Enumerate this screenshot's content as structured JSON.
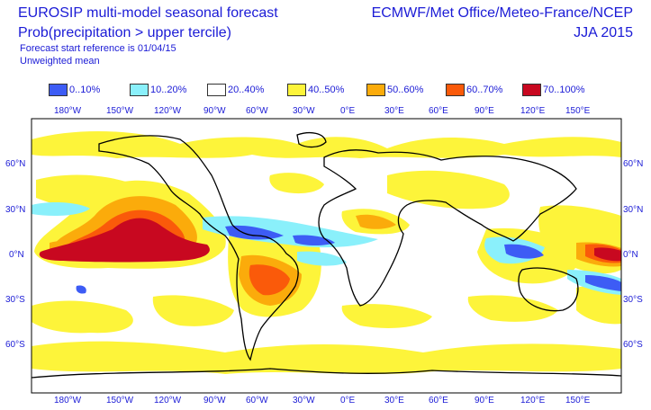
{
  "title": {
    "line1": "EUROSIP multi-model seasonal forecast",
    "line2": "Prob(precipitation > upper tercile)",
    "line3": "Forecast start reference is 01/04/15",
    "line4": "Unweighted mean",
    "right1": "ECMWF/Met Office/Meteo-France/NCEP",
    "right2": "JJA 2015"
  },
  "legend": [
    {
      "label": "0..10%",
      "color": "#3d5cf5"
    },
    {
      "label": "10..20%",
      "color": "#8af0fb"
    },
    {
      "label": "20..40%",
      "color": "#ffffff"
    },
    {
      "label": "40..50%",
      "color": "#fdf43a"
    },
    {
      "label": "50..60%",
      "color": "#fbab0b"
    },
    {
      "label": "60..70%",
      "color": "#fa5a0a"
    },
    {
      "label": "70..100%",
      "color": "#c80820"
    }
  ],
  "axes": {
    "x_ticks": [
      "180°W",
      "150°W",
      "120°W",
      "90°W",
      "60°W",
      "30°W",
      "0°E",
      "30°E",
      "60°E",
      "90°E",
      "120°E",
      "150°E"
    ],
    "y_ticks": [
      "60°N",
      "30°N",
      "0°N",
      "30°S",
      "60°S"
    ]
  }
}
